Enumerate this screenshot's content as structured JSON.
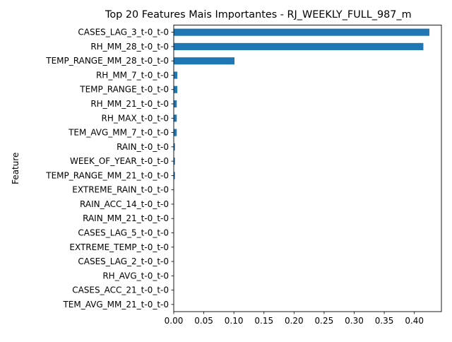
{
  "chart_data": {
    "type": "bar",
    "orientation": "horizontal",
    "title": "Top 20 Features Mais Importantes - RJ_WEEKLY_FULL_987_m",
    "xlabel": "",
    "ylabel": "Feature",
    "xlim": [
      0,
      0.445
    ],
    "grid": false,
    "legend": "none",
    "bar_color": "#1f77b4",
    "categories": [
      "CASES_LAG_3_t-0_t-0",
      "RH_MM_28_t-0_t-0",
      "TEMP_RANGE_MM_28_t-0_t-0",
      "RH_MM_7_t-0_t-0",
      "TEMP_RANGE_t-0_t-0",
      "RH_MM_21_t-0_t-0",
      "RH_MAX_t-0_t-0",
      "TEM_AVG_MM_7_t-0_t-0",
      "RAIN_t-0_t-0",
      "WEEK_OF_YEAR_t-0_t-0",
      "TEMP_RANGE_MM_21_t-0_t-0",
      "EXTREME_RAIN_t-0_t-0",
      "RAIN_ACC_14_t-0_t-0",
      "RAIN_MM_21_t-0_t-0",
      "CASES_LAG_5_t-0_t-0",
      "EXTREME_TEMP_t-0_t-0",
      "CASES_LAG_2_t-0_t-0",
      "RH_AVG_t-0_t-0",
      "CASES_ACC_21_t-0_t-0",
      "TEM_AVG_MM_21_t-0_t-0"
    ],
    "values": [
      0.425,
      0.415,
      0.101,
      0.006,
      0.006,
      0.005,
      0.005,
      0.005,
      0.002,
      0.002,
      0.002,
      0.0005,
      0.0004,
      0.0004,
      0.0003,
      0.0003,
      0.0002,
      0.0002,
      0.0001,
      0.0001
    ],
    "xticks": [
      "0.00",
      "0.05",
      "0.10",
      "0.15",
      "0.20",
      "0.25",
      "0.30",
      "0.35",
      "0.40"
    ]
  }
}
